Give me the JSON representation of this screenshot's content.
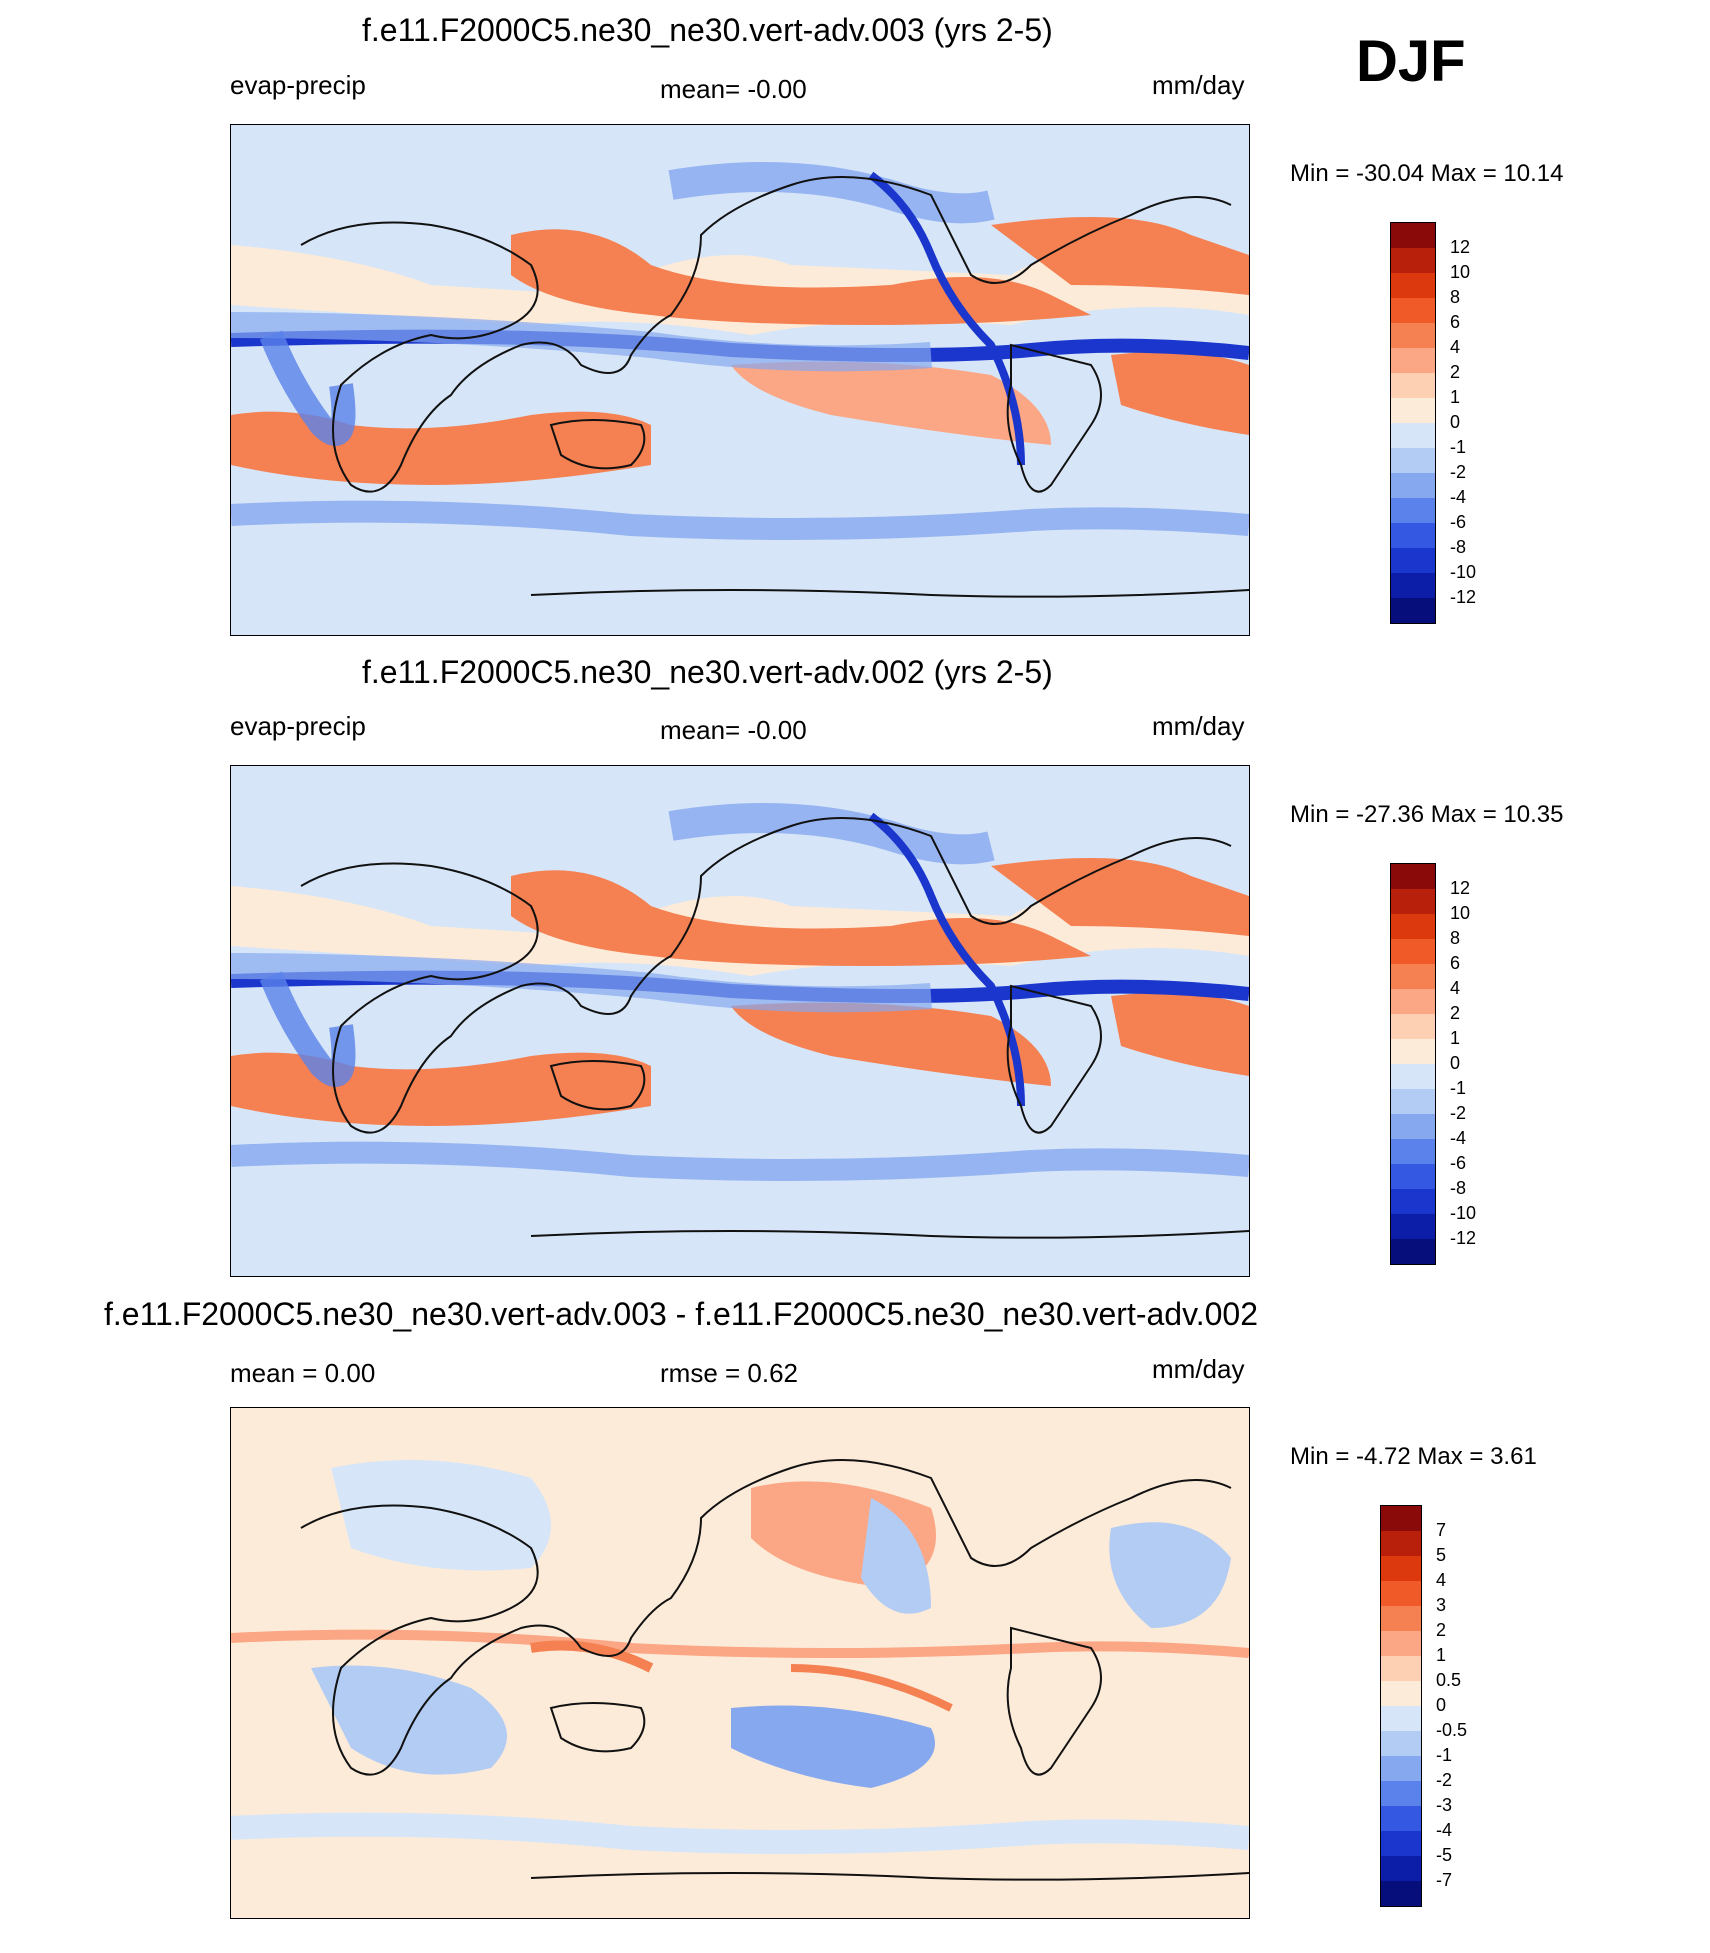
{
  "season": "DJF",
  "panels": [
    {
      "title": "f.e11.F2000C5.ne30_ne30.vert-adv.003 (yrs 2-5)",
      "left_label": "evap-precip",
      "center_label": "mean=  -0.00",
      "right_label": "mm/day",
      "minmax": "Min = -30.04 Max =  10.14",
      "colorbar": {
        "labels": [
          "12",
          "10",
          "8",
          "6",
          "4",
          "2",
          "1",
          "0",
          "-1",
          "-2",
          "-4",
          "-6",
          "-8",
          "-10",
          "-12"
        ],
        "colors": [
          "#8a0a0a",
          "#b8200c",
          "#dc3a0e",
          "#f05a28",
          "#f58052",
          "#fba684",
          "#fdd0b4",
          "#fdebd9",
          "#d6e6f8",
          "#b3ccf4",
          "#86a8ef",
          "#5a82ea",
          "#3458e2",
          "#1a36cc",
          "#0c1ea8",
          "#060e7c"
        ]
      }
    },
    {
      "title": "f.e11.F2000C5.ne30_ne30.vert-adv.002 (yrs 2-5)",
      "left_label": "evap-precip",
      "center_label": "mean=  -0.00",
      "right_label": "mm/day",
      "minmax": "Min = -27.36 Max =  10.35",
      "colorbar": {
        "labels": [
          "12",
          "10",
          "8",
          "6",
          "4",
          "2",
          "1",
          "0",
          "-1",
          "-2",
          "-4",
          "-6",
          "-8",
          "-10",
          "-12"
        ],
        "colors": [
          "#8a0a0a",
          "#b8200c",
          "#dc3a0e",
          "#f05a28",
          "#f58052",
          "#fba684",
          "#fdd0b4",
          "#fdebd9",
          "#d6e6f8",
          "#b3ccf4",
          "#86a8ef",
          "#5a82ea",
          "#3458e2",
          "#1a36cc",
          "#0c1ea8",
          "#060e7c"
        ]
      }
    },
    {
      "title": "f.e11.F2000C5.ne30_ne30.vert-adv.003 - f.e11.F2000C5.ne30_ne30.vert-adv.002",
      "left_label": "mean =   0.00",
      "center_label": "rmse =   0.62",
      "right_label": "mm/day",
      "minmax": "Min =  -4.72 Max =   3.61",
      "colorbar": {
        "labels": [
          "7",
          "5",
          "4",
          "3",
          "2",
          "1",
          "0.5",
          "0",
          "-0.5",
          "-1",
          "-2",
          "-3",
          "-4",
          "-5",
          "-7"
        ],
        "colors": [
          "#8a0a0a",
          "#b8200c",
          "#dc3a0e",
          "#f05a28",
          "#f58052",
          "#fba684",
          "#fdd0b4",
          "#fdebd9",
          "#d6e6f8",
          "#b3ccf4",
          "#86a8ef",
          "#5a82ea",
          "#3458e2",
          "#1a36cc",
          "#0c1ea8",
          "#060e7c"
        ]
      }
    }
  ]
}
